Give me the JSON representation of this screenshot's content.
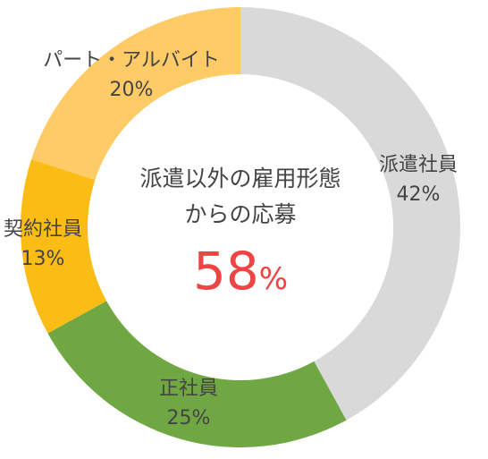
{
  "chart_data": {
    "type": "pie",
    "donut": true,
    "slices": [
      {
        "label": "派遣社員",
        "value": 42,
        "value_label": "42%",
        "color": "#d9d9d9"
      },
      {
        "label": "正社員",
        "value": 25,
        "value_label": "25%",
        "color": "#6fa842"
      },
      {
        "label": "契約社員",
        "value": 13,
        "value_label": "13%",
        "color": "#fbbd15"
      },
      {
        "label": "パート・アルバイト",
        "value": 20,
        "value_label": "20%",
        "color": "#fecb66"
      }
    ],
    "center": {
      "line1": "派遣以外の雇用形態",
      "line2": "からの応募",
      "number": "58",
      "unit": "%",
      "number_color": "#ee4444"
    }
  }
}
